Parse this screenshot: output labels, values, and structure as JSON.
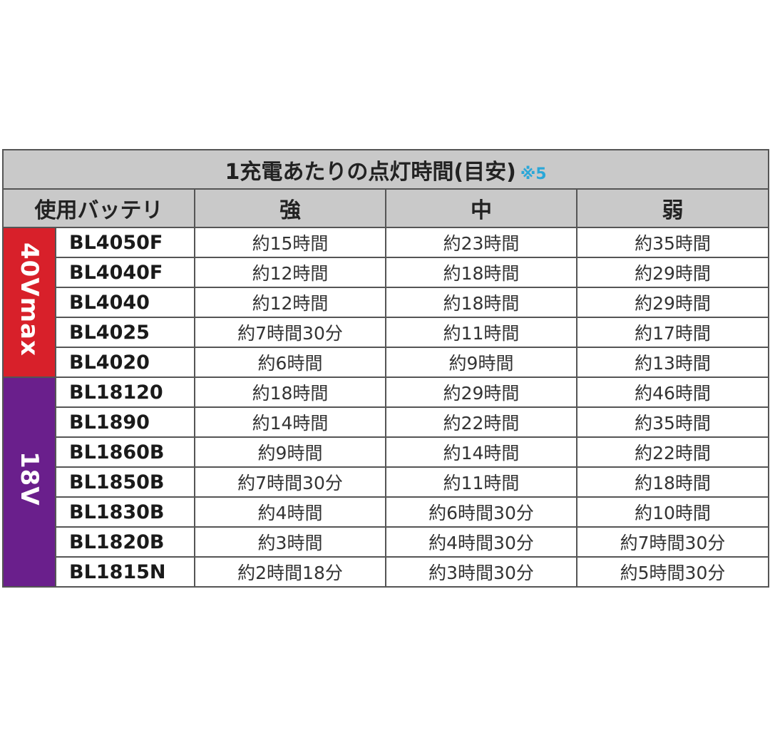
{
  "title": "1充電あたりの点灯時間(目安)",
  "title_note": "※5",
  "colors": {
    "group_40v": "#d8202a",
    "group_18v": "#6a1f8c",
    "header_bg": "#c9c9c9",
    "note": "#2aa7d8"
  },
  "headers": {
    "battery": "使用バッテリ",
    "high": "強",
    "mid": "中",
    "low": "弱"
  },
  "groups": [
    {
      "label": "40Vmax",
      "rows": [
        {
          "model": "BL4050F",
          "high": "約15時間",
          "mid": "約23時間",
          "low": "約35時間"
        },
        {
          "model": "BL4040F",
          "high": "約12時間",
          "mid": "約18時間",
          "low": "約29時間"
        },
        {
          "model": "BL4040",
          "high": "約12時間",
          "mid": "約18時間",
          "low": "約29時間"
        },
        {
          "model": "BL4025",
          "high": "約7時間30分",
          "mid": "約11時間",
          "low": "約17時間"
        },
        {
          "model": "BL4020",
          "high": "約6時間",
          "mid": "約9時間",
          "low": "約13時間"
        }
      ]
    },
    {
      "label": "18V",
      "rows": [
        {
          "model": "BL18120",
          "high": "約18時間",
          "mid": "約29時間",
          "low": "約46時間"
        },
        {
          "model": "BL1890",
          "high": "約14時間",
          "mid": "約22時間",
          "low": "約35時間"
        },
        {
          "model": "BL1860B",
          "high": "約9時間",
          "mid": "約14時間",
          "low": "約22時間"
        },
        {
          "model": "BL1850B",
          "high": "約7時間30分",
          "mid": "約11時間",
          "low": "約18時間"
        },
        {
          "model": "BL1830B",
          "high": "約4時間",
          "mid": "約6時間30分",
          "low": "約10時間"
        },
        {
          "model": "BL1820B",
          "high": "約3時間",
          "mid": "約4時間30分",
          "low": "約7時間30分"
        },
        {
          "model": "BL1815N",
          "high": "約2時間18分",
          "mid": "約3時間30分",
          "low": "約5時間30分"
        }
      ]
    }
  ]
}
